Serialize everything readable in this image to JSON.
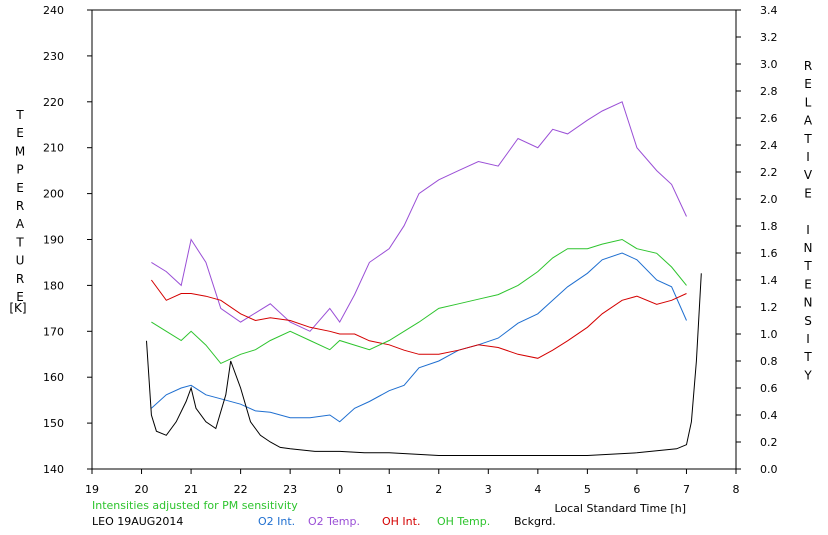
{
  "chart_data": {
    "type": "line",
    "xlabel": "Local Standard Time [h]",
    "ylabel": "TEMPERATURE",
    "ylabel_unit": "[K]",
    "y2label": "RELATIVE INTENSITY",
    "note": "Intensities adjusted for PM sensitivity",
    "station": "LEO 19AUG2014",
    "xlim": [
      19,
      32
    ],
    "x_tick_labels": [
      "19",
      "20",
      "21",
      "22",
      "23",
      "0",
      "1",
      "2",
      "3",
      "4",
      "5",
      "6",
      "7",
      "8"
    ],
    "ylim": [
      140,
      240
    ],
    "y_ticks": [
      140,
      150,
      160,
      170,
      180,
      190,
      200,
      210,
      220,
      230,
      240
    ],
    "y2lim": [
      0,
      3.4
    ],
    "y2_ticks": [
      "0.0",
      "0.2",
      "0.4",
      "0.6",
      "0.8",
      "1.0",
      "1.2",
      "1.4",
      "1.6",
      "1.8",
      "2.0",
      "2.2",
      "2.4",
      "2.6",
      "2.8",
      "3.0",
      "3.2",
      "3.4"
    ],
    "grid": false,
    "legend_position": "bottom",
    "series": [
      {
        "name": "O2 Int.",
        "color": "#1f6fd0",
        "axis": "right",
        "x": [
          20.2,
          20.5,
          20.8,
          21.0,
          21.3,
          21.6,
          22.0,
          22.3,
          22.6,
          23.0,
          23.4,
          23.8,
          24.0,
          24.3,
          24.6,
          25.0,
          25.3,
          25.6,
          26.0,
          26.4,
          26.8,
          27.2,
          27.6,
          28.0,
          28.3,
          28.6,
          29.0,
          29.3,
          29.7,
          30.0,
          30.4,
          30.7,
          31.0
        ],
        "y": [
          0.45,
          0.55,
          0.6,
          0.62,
          0.55,
          0.52,
          0.48,
          0.43,
          0.42,
          0.38,
          0.38,
          0.4,
          0.35,
          0.45,
          0.5,
          0.58,
          0.62,
          0.75,
          0.8,
          0.88,
          0.92,
          0.97,
          1.08,
          1.15,
          1.25,
          1.35,
          1.45,
          1.55,
          1.6,
          1.55,
          1.4,
          1.35,
          1.1
        ]
      },
      {
        "name": "O2 Temp.",
        "color": "#9a4fd6",
        "axis": "left",
        "x": [
          20.2,
          20.5,
          20.8,
          21.0,
          21.3,
          21.6,
          22.0,
          22.3,
          22.6,
          23.0,
          23.4,
          23.8,
          24.0,
          24.3,
          24.6,
          25.0,
          25.3,
          25.6,
          26.0,
          26.4,
          26.8,
          27.2,
          27.6,
          28.0,
          28.3,
          28.6,
          29.0,
          29.3,
          29.7,
          30.0,
          30.4,
          30.7,
          31.0
        ],
        "y": [
          185,
          183,
          180,
          190,
          185,
          175,
          172,
          174,
          176,
          172,
          170,
          175,
          172,
          178,
          185,
          188,
          193,
          200,
          203,
          205,
          207,
          206,
          212,
          210,
          214,
          213,
          216,
          218,
          220,
          210,
          205,
          202,
          195
        ]
      },
      {
        "name": "OH Int.",
        "color": "#d40000",
        "axis": "right",
        "x": [
          20.2,
          20.5,
          20.8,
          21.0,
          21.3,
          21.6,
          22.0,
          22.3,
          22.6,
          23.0,
          23.4,
          23.8,
          24.0,
          24.3,
          24.6,
          25.0,
          25.3,
          25.6,
          26.0,
          26.4,
          26.8,
          27.2,
          27.6,
          28.0,
          28.3,
          28.6,
          29.0,
          29.3,
          29.7,
          30.0,
          30.4,
          30.7,
          31.0
        ],
        "y": [
          1.4,
          1.25,
          1.3,
          1.3,
          1.28,
          1.25,
          1.15,
          1.1,
          1.12,
          1.1,
          1.05,
          1.02,
          1.0,
          1.0,
          0.95,
          0.92,
          0.88,
          0.85,
          0.85,
          0.88,
          0.92,
          0.9,
          0.85,
          0.82,
          0.88,
          0.95,
          1.05,
          1.15,
          1.25,
          1.28,
          1.22,
          1.25,
          1.3
        ]
      },
      {
        "name": "OH Temp.",
        "color": "#2ec42e",
        "axis": "left",
        "x": [
          20.2,
          20.5,
          20.8,
          21.0,
          21.3,
          21.6,
          22.0,
          22.3,
          22.6,
          23.0,
          23.4,
          23.8,
          24.0,
          24.3,
          24.6,
          25.0,
          25.3,
          25.6,
          26.0,
          26.4,
          26.8,
          27.2,
          27.6,
          28.0,
          28.3,
          28.6,
          29.0,
          29.3,
          29.7,
          30.0,
          30.4,
          30.7,
          31.0
        ],
        "y": [
          172,
          170,
          168,
          170,
          167,
          163,
          165,
          166,
          168,
          170,
          168,
          166,
          168,
          167,
          166,
          168,
          170,
          172,
          175,
          176,
          177,
          178,
          180,
          183,
          186,
          188,
          188,
          189,
          190,
          188,
          187,
          184,
          180
        ]
      },
      {
        "name": "Bckgrd.",
        "color": "#000000",
        "axis": "right",
        "x": [
          20.1,
          20.2,
          20.3,
          20.5,
          20.7,
          20.9,
          21.0,
          21.1,
          21.3,
          21.5,
          21.7,
          21.8,
          22.0,
          22.2,
          22.4,
          22.6,
          22.8,
          23.0,
          23.5,
          24.0,
          24.5,
          25.0,
          25.5,
          26.0,
          27.0,
          28.0,
          29.0,
          30.0,
          30.8,
          31.0,
          31.1,
          31.2,
          31.3
        ],
        "y": [
          0.95,
          0.4,
          0.28,
          0.25,
          0.35,
          0.5,
          0.6,
          0.45,
          0.35,
          0.3,
          0.55,
          0.8,
          0.6,
          0.35,
          0.25,
          0.2,
          0.16,
          0.15,
          0.13,
          0.13,
          0.12,
          0.12,
          0.11,
          0.1,
          0.1,
          0.1,
          0.1,
          0.12,
          0.15,
          0.18,
          0.35,
          0.8,
          1.45
        ]
      }
    ]
  }
}
